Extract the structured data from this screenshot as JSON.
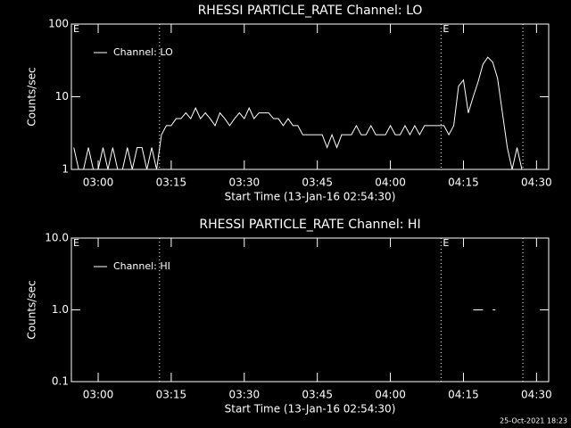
{
  "chart_data": [
    {
      "type": "line",
      "title": "RHESSI PARTICLE_RATE Channel: LO",
      "ylabel": "Counts/sec",
      "xlabel": "Start Time (13-Jan-16 02:54:30)",
      "log_y": true,
      "legend": "upper left",
      "xlim": [
        "02:54:30",
        "04:32:30"
      ],
      "xticks": [
        "03:00",
        "03:15",
        "03:30",
        "03:45",
        "04:00",
        "04:15",
        "04:30"
      ],
      "ylim": [
        1,
        100
      ],
      "yticks": [
        1,
        10,
        100
      ],
      "vlines": [
        "03:12:36",
        "04:10:24",
        "04:27:12"
      ],
      "annotations": [
        {
          "x": "02:54:30",
          "label": "E"
        },
        {
          "x": "04:10:24",
          "label": "E"
        }
      ],
      "x": [
        "02:55",
        "02:56",
        "02:57",
        "02:58",
        "02:59",
        "03:00",
        "03:01",
        "03:02",
        "03:03",
        "03:04",
        "03:05",
        "03:06",
        "03:07",
        "03:08",
        "03:09",
        "03:10",
        "03:11",
        "03:12",
        "03:13",
        "03:14",
        "03:15",
        "03:16",
        "03:17",
        "03:18",
        "03:19",
        "03:20",
        "03:21",
        "03:22",
        "03:23",
        "03:24",
        "03:25",
        "03:26",
        "03:27",
        "03:28",
        "03:29",
        "03:30",
        "03:31",
        "03:32",
        "03:33",
        "03:34",
        "03:35",
        "03:36",
        "03:37",
        "03:38",
        "03:39",
        "03:40",
        "03:41",
        "03:42",
        "03:43",
        "03:44",
        "03:45",
        "03:46",
        "03:47",
        "03:48",
        "03:49",
        "03:50",
        "03:51",
        "03:52",
        "03:53",
        "03:54",
        "03:55",
        "03:56",
        "03:57",
        "03:58",
        "03:59",
        "04:00",
        "04:01",
        "04:02",
        "04:03",
        "04:04",
        "04:05",
        "04:06",
        "04:07",
        "04:08",
        "04:09",
        "04:10",
        "04:11",
        "04:12",
        "04:13",
        "04:14",
        "04:15",
        "04:16",
        "04:17",
        "04:18",
        "04:19",
        "04:20",
        "04:21",
        "04:22",
        "04:23",
        "04:24",
        "04:25",
        "04:26",
        "04:27"
      ],
      "series": [
        {
          "name": "Channel: LO",
          "color": "#ffffff",
          "values": [
            2,
            1,
            1,
            2,
            1,
            1,
            2,
            1,
            2,
            1,
            1,
            2,
            1,
            2,
            2,
            1,
            2,
            1,
            3,
            4,
            4,
            5,
            5,
            6,
            5,
            7,
            5,
            6,
            5,
            4,
            6,
            5,
            4,
            5,
            6,
            5,
            7,
            5,
            6,
            6,
            6,
            5,
            5,
            4,
            5,
            4,
            4,
            3,
            3,
            3,
            3,
            3,
            2,
            3,
            2,
            3,
            3,
            3,
            4,
            3,
            3,
            4,
            3,
            3,
            3,
            4,
            3,
            3,
            4,
            3,
            4,
            3,
            4,
            4,
            4,
            4,
            4,
            3,
            4,
            14,
            17,
            6,
            10,
            16,
            28,
            35,
            30,
            18,
            6,
            2,
            1,
            2,
            1
          ]
        }
      ]
    },
    {
      "type": "line",
      "title": "RHESSI PARTICLE_RATE Channel: HI",
      "ylabel": "Counts/sec",
      "xlabel": "Start Time (13-Jan-16 02:54:30)",
      "log_y": true,
      "legend": "upper left",
      "xlim": [
        "02:54:30",
        "04:32:30"
      ],
      "xticks": [
        "03:00",
        "03:15",
        "03:30",
        "03:45",
        "04:00",
        "04:15",
        "04:30"
      ],
      "ylim": [
        0.1,
        10
      ],
      "yticks": [
        0.1,
        {
          "value": 1,
          "label": "1.0"
        },
        {
          "value": 10,
          "label": "10.0"
        }
      ],
      "vlines": [
        "03:12:36",
        "04:10:24",
        "04:27:12"
      ],
      "annotations": [
        {
          "x": "02:54:30",
          "label": "E"
        },
        {
          "x": "04:10:24",
          "label": "E"
        }
      ],
      "x": [
        "04:17",
        "04:18",
        "04:19",
        "04:20",
        "04:21"
      ],
      "series": [
        {
          "name": "Channel: HI",
          "color": "#ffffff",
          "values": [
            1,
            1,
            1,
            null,
            1
          ]
        }
      ]
    }
  ],
  "footer": "25-Oct-2021 18:23"
}
